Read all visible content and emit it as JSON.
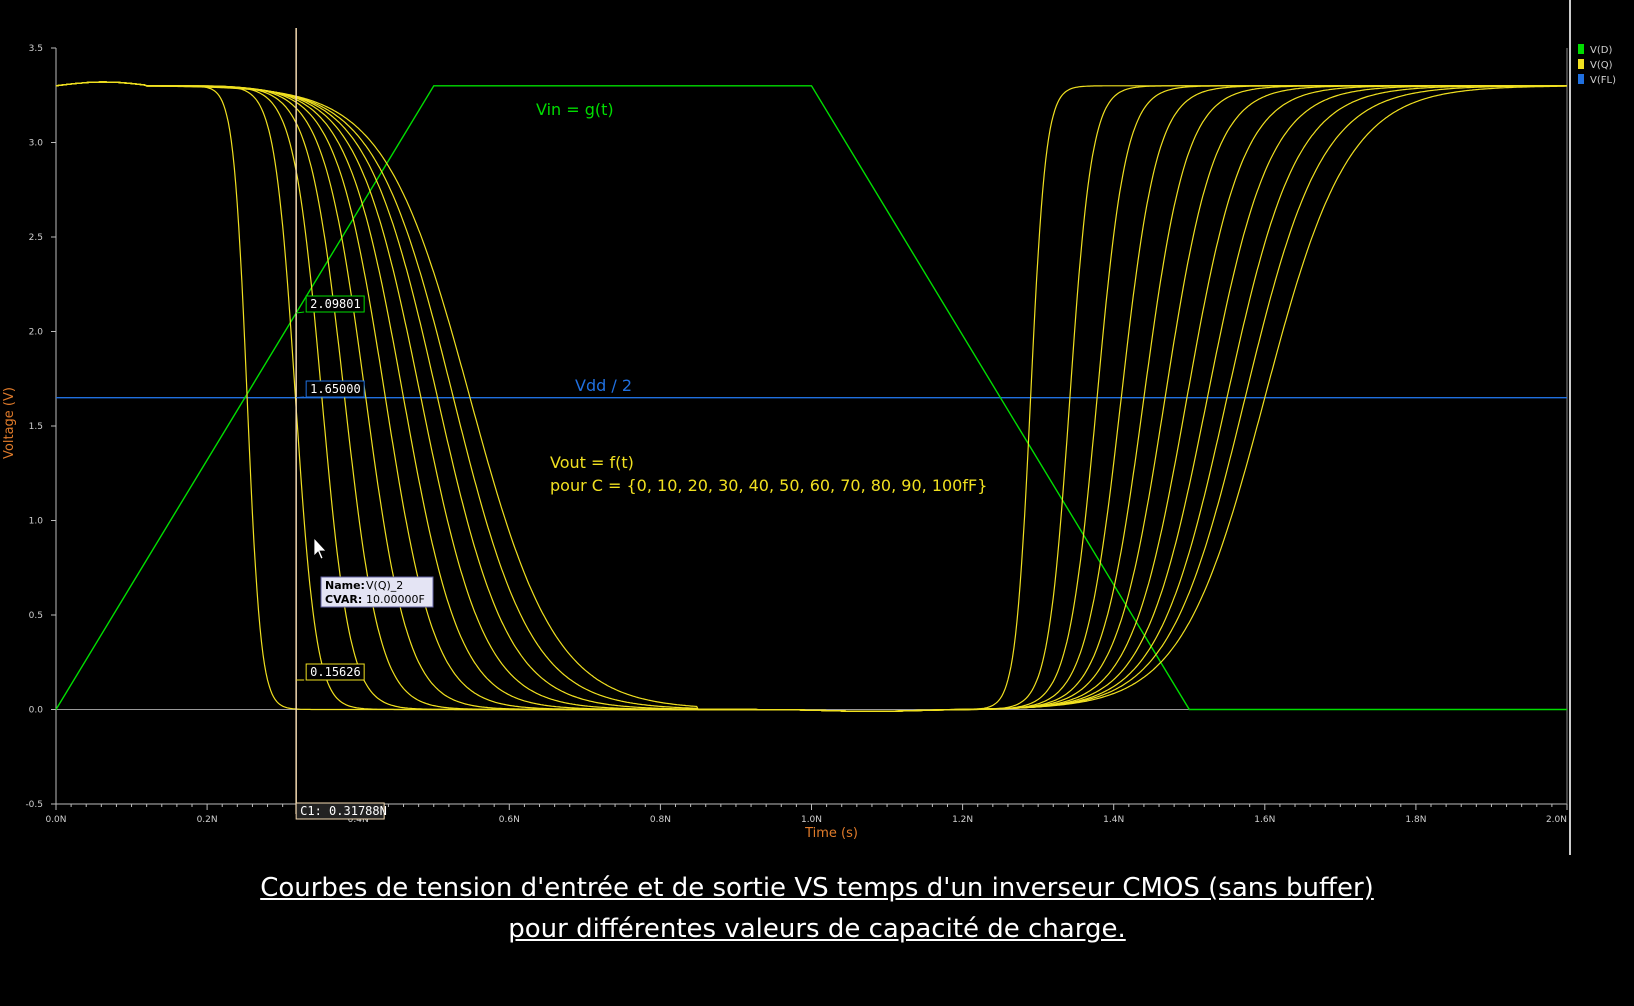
{
  "chart_data": {
    "type": "line",
    "xlabel": "Time (s)",
    "ylabel": "Voltage (V)",
    "xlim": [
      0,
      2.0
    ],
    "ylim": [
      -0.5,
      3.5
    ],
    "x_unit": "ns",
    "x_ticks": [
      "0.0N",
      "0.2N",
      "0.4N",
      "0.6N",
      "0.8N",
      "1.0N",
      "1.2N",
      "1.4N",
      "1.6N",
      "1.8N",
      "2.0N"
    ],
    "y_ticks": [
      "-0.5",
      "0.0",
      "0.5",
      "1.0",
      "1.5",
      "2.0",
      "2.5",
      "3.0",
      "3.5"
    ],
    "grid": false,
    "legend_position": "top-right",
    "legend": [
      {
        "label": "V(D)",
        "color": "#00dd00"
      },
      {
        "label": "V(Q)",
        "color": "#f0e020"
      },
      {
        "label": "V(FL)",
        "color": "#2070e0"
      }
    ],
    "series": [
      {
        "name": "V(D)",
        "color": "#00dd00",
        "x": [
          0,
          0.5,
          1.0,
          1.5,
          2.0
        ],
        "y": [
          0,
          3.3,
          3.3,
          0,
          0
        ]
      },
      {
        "name": "V(FL)",
        "color": "#2070e0",
        "x": [
          0,
          2.0
        ],
        "y": [
          1.65,
          1.65
        ]
      },
      {
        "name": "V(Q)",
        "color": "#f0e020",
        "capacitance_fF": [
          0,
          10,
          20,
          30,
          40,
          50,
          60,
          70,
          80,
          90,
          100
        ],
        "fall_mid_ns": [
          0.253,
          0.317,
          0.352,
          0.382,
          0.41,
          0.436,
          0.46,
          0.483,
          0.505,
          0.526,
          0.548
        ],
        "rise_mid_ns": [
          1.29,
          1.342,
          1.378,
          1.41,
          1.44,
          1.468,
          1.497,
          1.524,
          1.55,
          1.574,
          1.6
        ]
      }
    ],
    "annotations": [
      {
        "text": "Vin = g(t)",
        "color": "#00dd00"
      },
      {
        "text": "Vdd / 2",
        "color": "#2070e0"
      },
      {
        "text": "Vout = f(t)",
        "color": "#f0e020"
      },
      {
        "text": "pour C = {0, 10, 20, 30, 40, 50, 60, 70, 80, 90, 100fF}",
        "color": "#f0e020"
      }
    ],
    "cursor": {
      "label": "C1: 0.31788N",
      "x": 0.31788,
      "markers": [
        {
          "text": "2.09801",
          "y": 2.09801,
          "color": "#00dd00"
        },
        {
          "text": "1.65000",
          "y": 1.65,
          "color": "#2070e0"
        },
        {
          "text": "0.15626",
          "y": 0.15626,
          "color": "#f0e020"
        }
      ]
    },
    "tooltip": {
      "name_label": "Name:",
      "name_value": "V(Q)_2",
      "cvar_label": "CVAR:",
      "cvar_value": "10.00000F"
    }
  },
  "caption": {
    "line1": "Courbes de tension d'entrée et de sortie VS temps d'un inverseur CMOS (sans buffer)",
    "line2": "pour différentes valeurs de capacité de charge."
  }
}
